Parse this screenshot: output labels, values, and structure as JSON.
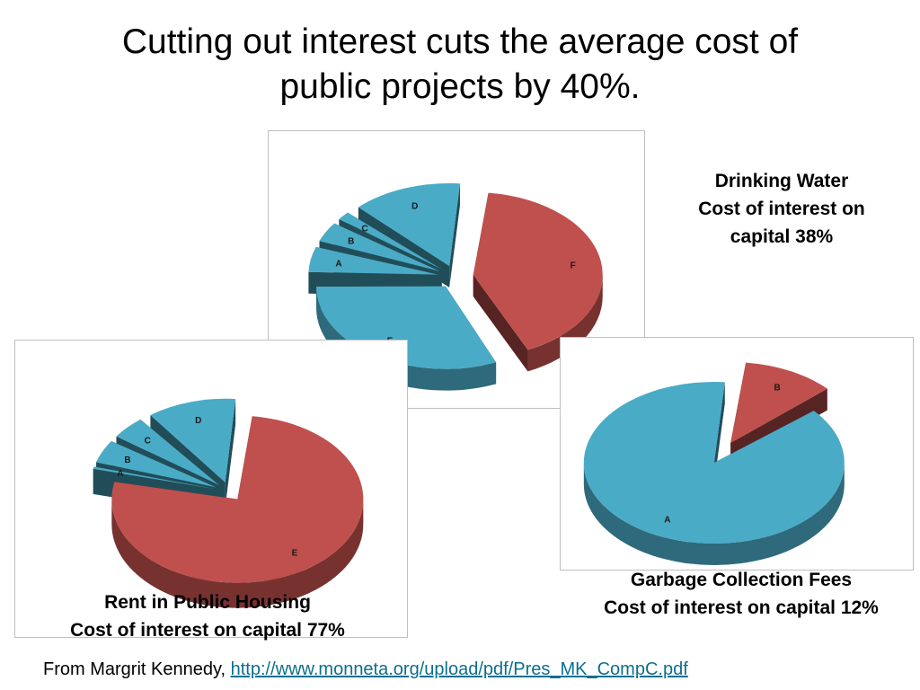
{
  "title_line1": "Cutting out interest cuts the average cost of",
  "title_line2": "public projects by 40%.",
  "colors": {
    "blue": "#4aabc6",
    "red": "#c0504d"
  },
  "chart_data": [
    {
      "type": "pie",
      "caption": [
        "Drinking Water",
        "Cost of interest on",
        "capital 38%"
      ],
      "slices": [
        {
          "label": "F",
          "value": 38,
          "color": "red"
        },
        {
          "label": "E",
          "value": 29,
          "color": "blue"
        },
        {
          "label": "A",
          "value": 5,
          "color": "blue"
        },
        {
          "label": "B",
          "value": 4,
          "color": "blue"
        },
        {
          "label": "C",
          "value": 2,
          "color": "blue"
        },
        {
          "label": "D",
          "value": 13,
          "color": "blue"
        }
      ]
    },
    {
      "type": "pie",
      "caption": [
        "Rent in Public Housing",
        "Cost of interest on capital 77%"
      ],
      "slices": [
        {
          "label": "E",
          "value": 77,
          "color": "red"
        },
        {
          "label": "A",
          "value": 1,
          "color": "blue"
        },
        {
          "label": "B",
          "value": 5,
          "color": "blue"
        },
        {
          "label": "C",
          "value": 5,
          "color": "blue"
        },
        {
          "label": "D",
          "value": 12,
          "color": "blue"
        }
      ]
    },
    {
      "type": "pie",
      "caption": [
        "Garbage Collection Fees",
        "Cost of interest on capital 12%"
      ],
      "slices": [
        {
          "label": "B",
          "value": 12,
          "color": "red"
        },
        {
          "label": "A",
          "value": 88,
          "color": "blue"
        }
      ]
    }
  ],
  "source": {
    "prefix": "From Margrit Kennedy, ",
    "link": "http://www.monneta.org/upload/pdf/Pres_MK_CompC.pdf"
  }
}
